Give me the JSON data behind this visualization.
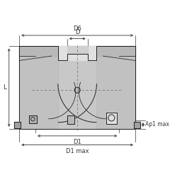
{
  "bg_color": "#ffffff",
  "body_fill": "#c8c8c8",
  "body_fill2": "#b8b8b8",
  "body_edge": "#222222",
  "dim_color": "#333333",
  "dash_color": "#777777",
  "insert_fill": "#d8d8d8",
  "insert_fill2": "#e8e8e8",
  "dark_fill": "#909090",
  "labels": {
    "D6": "D6",
    "D": "D",
    "D1": "D1",
    "D1max": "D1 max",
    "L": "L",
    "Ap1max": "Ap1 max"
  },
  "figsize": [
    2.4,
    2.4
  ],
  "dpi": 100
}
